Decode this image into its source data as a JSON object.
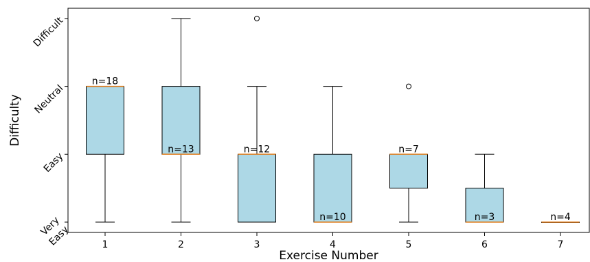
{
  "chart_data": {
    "type": "box",
    "title": "",
    "xlabel": "Exercise Number",
    "ylabel": "Difficulty",
    "y_ticks": [
      {
        "value": 1,
        "label": "Very\nEasy"
      },
      {
        "value": 2,
        "label": "Easy"
      },
      {
        "value": 3,
        "label": "Neutral"
      },
      {
        "value": 4,
        "label": "Difficult"
      }
    ],
    "ylim": [
      0.87,
      4.16
    ],
    "xlim": [
      0.5,
      7.4
    ],
    "grid": false,
    "colors": {
      "box_fill": "#add8e6",
      "median": "#e07b1a",
      "line": "#000000"
    },
    "boxes": [
      {
        "category": "1",
        "n_label": "n=18",
        "whislo": 1,
        "q1": 2,
        "median": 3,
        "q3": 3,
        "whishi": 3,
        "fliers": []
      },
      {
        "category": "2",
        "n_label": "n=13",
        "whislo": 1,
        "q1": 2,
        "median": 2,
        "q3": 3,
        "whishi": 4,
        "fliers": []
      },
      {
        "category": "3",
        "n_label": "n=12",
        "whislo": 1,
        "q1": 1,
        "median": 2,
        "q3": 2,
        "whishi": 3,
        "fliers": [
          4
        ]
      },
      {
        "category": "4",
        "n_label": "n=10",
        "whislo": 1,
        "q1": 1,
        "median": 1,
        "q3": 2,
        "whishi": 3,
        "fliers": []
      },
      {
        "category": "5",
        "n_label": "n=7",
        "whislo": 1,
        "q1": 1.5,
        "median": 2,
        "q3": 2,
        "whishi": 2,
        "fliers": [
          3
        ]
      },
      {
        "category": "6",
        "n_label": "n=3",
        "whislo": 1,
        "q1": 1,
        "median": 1,
        "q3": 1.5,
        "whishi": 2,
        "fliers": []
      },
      {
        "category": "7",
        "n_label": "n=4",
        "whislo": 1,
        "q1": 1,
        "median": 1,
        "q3": 1,
        "whishi": 1,
        "fliers": []
      }
    ]
  }
}
